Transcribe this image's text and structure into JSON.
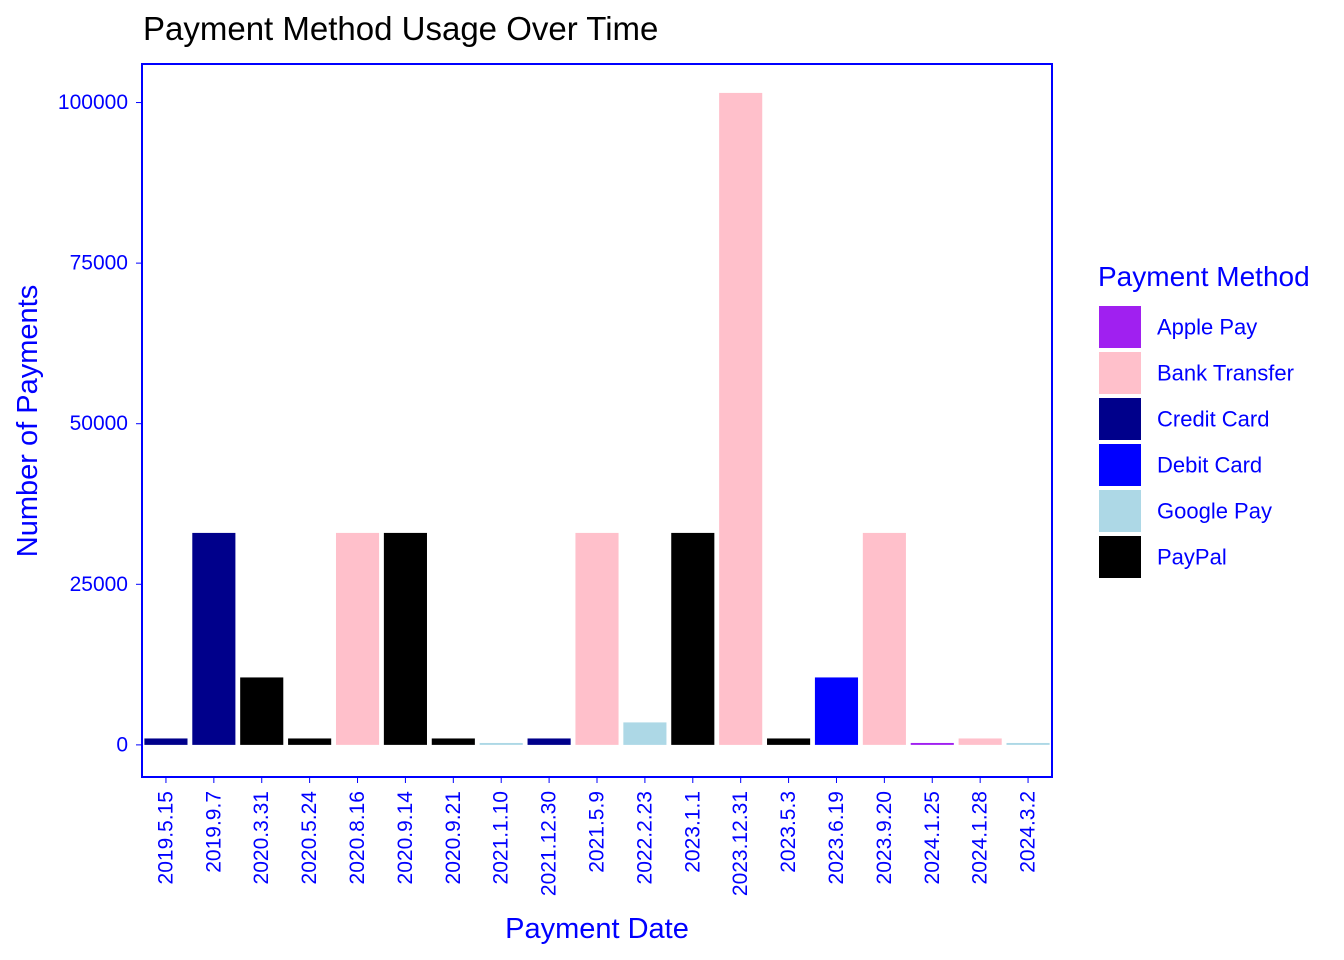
{
  "chart_data": {
    "type": "bar",
    "title": "Payment Method Usage Over Time",
    "xlabel": "Payment Date",
    "ylabel": "Number of Payments",
    "ylim": [
      -5000,
      106000
    ],
    "yticks": [
      0,
      25000,
      50000,
      75000,
      100000
    ],
    "ytick_labels": [
      "0",
      "25000",
      "50000",
      "75000",
      "100000"
    ],
    "grid": false,
    "legend": {
      "title": "Payment Method",
      "position": "right"
    },
    "categories": [
      "2019.5.15",
      "2019.9.7",
      "2020.3.31",
      "2020.5.24",
      "2020.8.16",
      "2020.9.14",
      "2020.9.21",
      "2021.1.10",
      "2021.12.30",
      "2021.5.9",
      "2022.2.23",
      "2023.1.1",
      "2023.12.31",
      "2023.5.3",
      "2023.6.19",
      "2023.9.20",
      "2024.1.25",
      "2024.1.28",
      "2024.3.2"
    ],
    "values": [
      1000,
      33000,
      10500,
      1000,
      33000,
      33000,
      1000,
      300,
      1000,
      33000,
      3500,
      33000,
      101500,
      1000,
      10500,
      33000,
      300,
      1000,
      300
    ],
    "methods": [
      "Credit Card",
      "Credit Card",
      "PayPal",
      "PayPal",
      "Bank Transfer",
      "PayPal",
      "PayPal",
      "Google Pay",
      "Credit Card",
      "Bank Transfer",
      "Google Pay",
      "PayPal",
      "Bank Transfer",
      "PayPal",
      "Debit Card",
      "Bank Transfer",
      "Apple Pay",
      "Bank Transfer",
      "Google Pay"
    ],
    "series": [
      {
        "name": "Apple Pay",
        "color": "#a020f0"
      },
      {
        "name": "Bank Transfer",
        "color": "#ffc0cb"
      },
      {
        "name": "Credit Card",
        "color": "#00008b"
      },
      {
        "name": "Debit Card",
        "color": "#0000ff"
      },
      {
        "name": "Google Pay",
        "color": "#add8e6"
      },
      {
        "name": "PayPal",
        "color": "#000000"
      }
    ],
    "axis_color": "#0000ff"
  }
}
